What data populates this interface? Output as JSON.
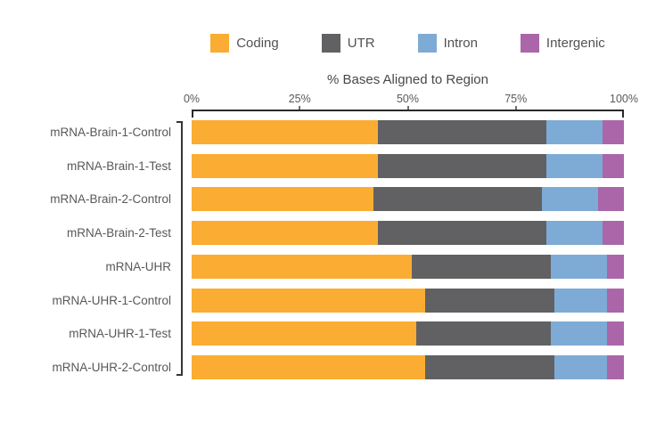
{
  "chart_data": {
    "type": "bar",
    "orientation": "horizontal",
    "stacked": true,
    "title": "% Bases Aligned to Region",
    "categories": [
      "mRNA-Brain-1-Control",
      "mRNA-Brain-1-Test",
      "mRNA-Brain-2-Control",
      "mRNA-Brain-2-Test",
      "mRNA-UHR",
      "mRNA-UHR-1-Control",
      "mRNA-UHR-1-Test",
      "mRNA-UHR-2-Control"
    ],
    "series": [
      {
        "name": "Coding",
        "color": "#FBAC33",
        "values": [
          43,
          43,
          42,
          43,
          51,
          54,
          52,
          54
        ]
      },
      {
        "name": "UTR",
        "color": "#616163",
        "values": [
          39,
          39,
          39,
          39,
          32,
          30,
          31,
          30
        ]
      },
      {
        "name": "Intron",
        "color": "#7EABD5",
        "values": [
          13,
          13,
          13,
          13,
          13,
          12,
          13,
          12
        ]
      },
      {
        "name": "Intergenic",
        "color": "#AA66A8",
        "values": [
          5,
          5,
          6,
          5,
          4,
          4,
          4,
          4
        ]
      }
    ],
    "xlim": [
      0,
      100
    ],
    "x_ticks": [
      0,
      25,
      50,
      75,
      100
    ],
    "x_tick_labels": [
      "0%",
      "25%",
      "50%",
      "75%",
      "100%"
    ],
    "legend_position": "top",
    "grid": false,
    "units": "percent of bases"
  }
}
